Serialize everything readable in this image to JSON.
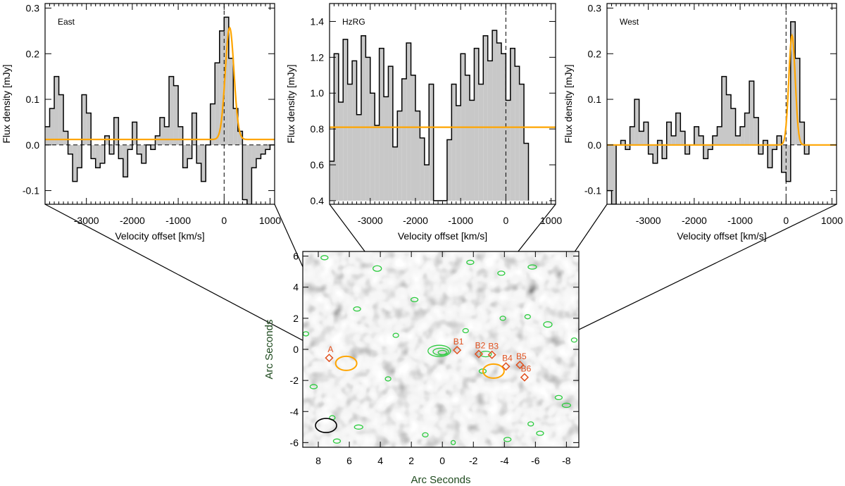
{
  "chart_data": [
    {
      "type": "bar",
      "panel": "East",
      "label": "East",
      "xlabel": "Velocity offset [km/s]",
      "ylabel": "Flux density [mJy]",
      "xlim": [
        -3900,
        1100
      ],
      "ylim": [
        -0.13,
        0.31
      ],
      "xticks": [
        -3000,
        -2000,
        -1000,
        0,
        1000
      ],
      "yticks": [
        -0.1,
        0.0,
        0.1,
        0.2,
        0.3
      ],
      "ytick_labels": [
        "-0.1",
        "0.0",
        "0.1",
        "0.2",
        "0.3"
      ],
      "baseline": 0.0,
      "bin_edges": [
        -3900,
        -3800,
        -3700,
        -3600,
        -3500,
        -3400,
        -3300,
        -3200,
        -3100,
        -3000,
        -2900,
        -2800,
        -2700,
        -2600,
        -2500,
        -2400,
        -2300,
        -2200,
        -2100,
        -2000,
        -1900,
        -1800,
        -1700,
        -1600,
        -1500,
        -1400,
        -1300,
        -1200,
        -1100,
        -1000,
        -900,
        -800,
        -700,
        -600,
        -500,
        -400,
        -300,
        -200,
        -100,
        0,
        100,
        200,
        300,
        400,
        500,
        600,
        700,
        800,
        900,
        1000,
        1100
      ],
      "values": [
        0.04,
        0.08,
        0.15,
        0.11,
        0.03,
        -0.02,
        -0.08,
        -0.05,
        0.11,
        0.07,
        -0.03,
        -0.05,
        -0.04,
        0.02,
        -0.02,
        0.06,
        -0.03,
        -0.07,
        -0.01,
        0.05,
        -0.02,
        -0.04,
        0.0,
        -0.01,
        0.02,
        0.06,
        0.04,
        0.15,
        0.13,
        0.04,
        -0.05,
        -0.03,
        0.07,
        -0.04,
        -0.08,
        0.0,
        0.09,
        0.18,
        0.25,
        0.28,
        0.19,
        0.08,
        0.03,
        -0.12,
        -0.14,
        -0.05,
        -0.03,
        -0.02,
        -0.01,
        0.0
      ],
      "fit": {
        "type": "gaussian",
        "offset": 0.012,
        "amplitude": 0.245,
        "center": 120,
        "sigma": 95,
        "color": "#ffa500"
      }
    },
    {
      "type": "bar",
      "panel": "HzRG",
      "label": "HzRG",
      "xlabel": "Velocity offset [km/s]",
      "ylabel": "Flux density [mJy]",
      "xlim": [
        -3900,
        1100
      ],
      "ylim": [
        0.38,
        1.5
      ],
      "xticks": [
        -3000,
        -2000,
        -1000,
        0,
        1000
      ],
      "yticks": [
        0.4,
        0.6,
        0.8,
        1.0,
        1.2,
        1.4
      ],
      "ytick_labels": [
        "0.4",
        "0.6",
        "0.8",
        "1.0",
        "1.2",
        "1.4"
      ],
      "baseline": 0.4,
      "bin_edges": [
        -3900,
        -3800,
        -3700,
        -3600,
        -3500,
        -3400,
        -3300,
        -3200,
        -3100,
        -3000,
        -2900,
        -2800,
        -2700,
        -2600,
        -2500,
        -2400,
        -2300,
        -2200,
        -2100,
        -2000,
        -1900,
        -1800,
        -1700,
        -1600,
        -1500,
        -1400,
        -1300,
        -1200,
        -1100,
        -1000,
        -900,
        -800,
        -700,
        -600,
        -500,
        -400,
        -300,
        -200,
        -100,
        0,
        100,
        200,
        300,
        400,
        500,
        600,
        700,
        800,
        900,
        1000,
        1100
      ],
      "values": [
        0.62,
        1.22,
        0.95,
        1.3,
        1.05,
        1.18,
        0.88,
        1.32,
        1.2,
        1.0,
        0.82,
        1.25,
        0.98,
        1.15,
        0.7,
        0.9,
        1.08,
        1.28,
        1.1,
        0.9,
        0.75,
        0.6,
        1.05,
        0.4,
        0.4,
        0.4,
        0.74,
        1.05,
        0.93,
        1.22,
        1.1,
        0.96,
        1.25,
        1.05,
        1.32,
        1.18,
        1.35,
        1.28,
        1.22,
        0.96,
        1.25,
        1.15,
        1.05,
        0.72,
        0.4,
        0.4,
        0.4,
        0.4,
        0.4,
        0.4
      ],
      "fill_bins": 44,
      "fit": {
        "type": "constant",
        "value": 0.81,
        "color": "#ffa500"
      }
    },
    {
      "type": "bar",
      "panel": "West",
      "label": "West",
      "xlabel": "Velocity offset [km/s]",
      "ylabel": "Flux density [mJy]",
      "xlim": [
        -3900,
        1100
      ],
      "ylim": [
        -0.13,
        0.31
      ],
      "xticks": [
        -3000,
        -2000,
        -1000,
        0,
        1000
      ],
      "yticks": [
        -0.1,
        0.0,
        0.1,
        0.2,
        0.3
      ],
      "ytick_labels": [
        "-0.1",
        "0.0",
        "0.1",
        "0.2",
        "0.3"
      ],
      "baseline": 0.0,
      "bin_edges": [
        -3900,
        -3800,
        -3700,
        -3600,
        -3500,
        -3400,
        -3300,
        -3200,
        -3100,
        -3000,
        -2900,
        -2800,
        -2700,
        -2600,
        -2500,
        -2400,
        -2300,
        -2200,
        -2100,
        -2000,
        -1900,
        -1800,
        -1700,
        -1600,
        -1500,
        -1400,
        -1300,
        -1200,
        -1100,
        -1000,
        -900,
        -800,
        -700,
        -600,
        -500,
        -400,
        -300,
        -200,
        -100,
        0,
        100,
        200,
        300,
        400,
        500,
        600,
        700,
        800,
        900,
        1000,
        1100
      ],
      "values": [
        -0.1,
        -0.13,
        0.0,
        0.01,
        -0.01,
        0.04,
        0.1,
        0.03,
        0.05,
        -0.02,
        -0.04,
        0.01,
        -0.03,
        0.05,
        0.02,
        0.07,
        0.03,
        -0.02,
        0.0,
        0.04,
        0.02,
        -0.03,
        -0.01,
        0.02,
        0.04,
        0.15,
        0.11,
        0.08,
        0.02,
        0.04,
        0.07,
        0.14,
        0.06,
        -0.02,
        0.01,
        -0.05,
        -0.01,
        0.02,
        -0.06,
        -0.08,
        0.27,
        0.19,
        0.05,
        -0.02,
        0.0,
        0.0,
        0.0,
        0.0,
        0.0,
        0.0
      ],
      "fit": {
        "type": "gaussian",
        "offset": 0.0,
        "amplitude": 0.24,
        "center": 130,
        "sigma": 70,
        "color": "#ffa500"
      }
    },
    {
      "type": "heatmap",
      "panel": "map",
      "xlabel": "Arc Seconds",
      "ylabel": "Arc Seconds",
      "xlim": [
        9,
        -8.8
      ],
      "ylim": [
        -6.3,
        6.3
      ],
      "xticks": [
        8,
        6,
        4,
        2,
        0,
        -2,
        -4,
        -6,
        -8
      ],
      "yticks": [
        6,
        4,
        2,
        0,
        -2,
        -4,
        -6
      ],
      "colormap": "grayscale (white = low, black = high)",
      "contour_color": "#2ecc40",
      "sources": [
        {
          "label": "A",
          "x": 7.3,
          "y": -0.55
        },
        {
          "label": "B1",
          "x": -0.95,
          "y": -0.05
        },
        {
          "label": "B2",
          "x": -2.35,
          "y": -0.3
        },
        {
          "label": "B3",
          "x": -3.2,
          "y": -0.35
        },
        {
          "label": "B4",
          "x": -4.1,
          "y": -1.1
        },
        {
          "label": "B5",
          "x": -5.0,
          "y": -1.0
        },
        {
          "label": "B6",
          "x": -5.3,
          "y": -1.8
        }
      ],
      "apertures": [
        {
          "name": "East",
          "x": 6.2,
          "y": -0.9,
          "color": "#ffa500"
        },
        {
          "name": "West",
          "x": -3.3,
          "y": -1.4,
          "color": "#ffa500"
        }
      ],
      "beam": {
        "x": 7.5,
        "y": -4.9
      }
    }
  ],
  "colors": {
    "histogram_fill": "#c8c8c8",
    "fit_line": "#ffa500",
    "source_marker": "#e0501e",
    "contour": "#2ecc40"
  }
}
